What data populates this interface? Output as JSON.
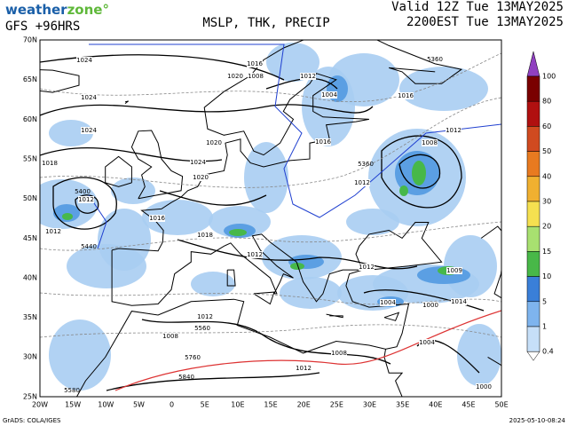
{
  "header": {
    "logo_a": "weather",
    "logo_b": "zone°",
    "model": "GFS +96HRS",
    "title": "MSLP, THK, PRECIP",
    "valid": "Valid 12Z Tue 13MAY2025",
    "local": "2200EST Tue 13MAY2025"
  },
  "map": {
    "lat_labels": [
      "70N",
      "65N",
      "60N",
      "55N",
      "50N",
      "45N",
      "40N",
      "35N",
      "30N",
      "25N"
    ],
    "lon_labels": [
      "20W",
      "15W",
      "10W",
      "5W",
      "0",
      "5E",
      "10E",
      "15E",
      "20E",
      "25E",
      "30E",
      "35E",
      "40E",
      "45E",
      "50E"
    ],
    "isobar_labels": [
      "1024",
      "1016",
      "1020",
      "1008",
      "1012",
      "1024",
      "1004",
      "1016",
      "1024",
      "1012",
      "1008",
      "1020",
      "1016",
      "1018",
      "1024",
      "1012",
      "1020",
      "1012",
      "1016",
      "1018",
      "1012",
      "1012",
      "1012",
      "1009",
      "1004",
      "1000",
      "1014",
      "1012",
      "1008",
      "1004",
      "1008",
      "1012",
      "1000"
    ],
    "thickness_labels": [
      "5400",
      "5440",
      "5360",
      "5360",
      "5580",
      "5560",
      "5760",
      "5840"
    ]
  },
  "colorbar": {
    "levels": [
      100,
      80,
      60,
      50,
      40,
      30,
      20,
      15,
      10,
      5,
      1,
      0.4
    ]
  },
  "footer": {
    "credit": "GrADS: COLA/IGES",
    "timestamp": "2025-05-10-08:24"
  }
}
